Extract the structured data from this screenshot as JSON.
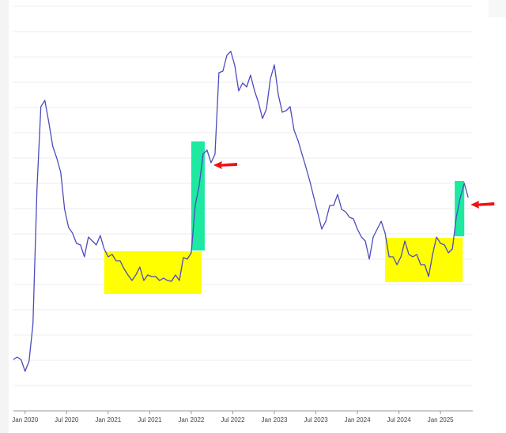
{
  "chart_data": {
    "type": "line",
    "x": [
      2019.857,
      2019.905,
      2019.952,
      2020,
      2020.048,
      2020.095,
      2020.143,
      2020.19,
      2020.238,
      2020.286,
      2020.333,
      2020.381,
      2020.429,
      2020.476,
      2020.524,
      2020.571,
      2020.619,
      2020.667,
      2020.714,
      2020.762,
      2020.81,
      2020.857,
      2020.905,
      2020.952,
      2021,
      2021.048,
      2021.095,
      2021.143,
      2021.19,
      2021.238,
      2021.286,
      2021.333,
      2021.381,
      2021.429,
      2021.476,
      2021.524,
      2021.571,
      2021.619,
      2021.667,
      2021.714,
      2021.762,
      2021.81,
      2021.857,
      2021.905,
      2021.952,
      2022,
      2022.048,
      2022.095,
      2022.143,
      2022.19,
      2022.238,
      2022.286,
      2022.333,
      2022.381,
      2022.429,
      2022.476,
      2022.524,
      2022.571,
      2022.619,
      2022.667,
      2022.714,
      2022.762,
      2022.81,
      2022.857,
      2022.905,
      2022.952,
      2023,
      2023.048,
      2023.095,
      2023.143,
      2023.19,
      2023.238,
      2023.286,
      2023.333,
      2023.381,
      2023.429,
      2023.476,
      2023.524,
      2023.571,
      2023.619,
      2023.667,
      2023.714,
      2023.762,
      2023.81,
      2023.857,
      2023.905,
      2023.952,
      2024,
      2024.048,
      2024.095,
      2024.143,
      2024.19,
      2024.238,
      2024.286,
      2024.333,
      2024.381,
      2024.429,
      2024.476,
      2024.524,
      2024.571,
      2024.619,
      2024.667,
      2024.714,
      2024.762,
      2024.81,
      2024.857,
      2024.905,
      2024.952,
      2025,
      2025.048,
      2025.095,
      2025.143,
      2025.19,
      2025.238,
      2025.286,
      2025.333
    ],
    "values": [
      65,
      68,
      65,
      50,
      63,
      110,
      280,
      385,
      393,
      365,
      335,
      320,
      302,
      255,
      232,
      225,
      212,
      210,
      195,
      220,
      215,
      210,
      222,
      205,
      195,
      198,
      190,
      190,
      180,
      172,
      165,
      172,
      182,
      165,
      172,
      170,
      170,
      165,
      168,
      165,
      164,
      172,
      165,
      194,
      192,
      200,
      260,
      285,
      325,
      330,
      314,
      325,
      428,
      430,
      450,
      455,
      437,
      405,
      415,
      410,
      425,
      405,
      390,
      370,
      382,
      420,
      438,
      400,
      378,
      380,
      385,
      355,
      342,
      325,
      308,
      290,
      270,
      250,
      230,
      240,
      260,
      260,
      274,
      255,
      252,
      245,
      243,
      230,
      220,
      215,
      192,
      220,
      230,
      240,
      225,
      195,
      195,
      185,
      195,
      215,
      198,
      195,
      198,
      185,
      185,
      170,
      198,
      220,
      212,
      210,
      200,
      205,
      245,
      270,
      288,
      270
    ],
    "color": "#4b4bbf",
    "xlim": [
      2019.86,
      2025.36
    ],
    "xticks": [
      {
        "value": 2020,
        "label": "Jan 2020"
      },
      {
        "value": 2020.5,
        "label": "Jul 2020"
      },
      {
        "value": 2021,
        "label": "Jan 2021"
      },
      {
        "value": 2021.5,
        "label": "Jul 2021"
      },
      {
        "value": 2022,
        "label": "Jan 2022"
      },
      {
        "value": 2022.5,
        "label": "Jul 2022"
      },
      {
        "value": 2023,
        "label": "Jan 2023"
      },
      {
        "value": 2023.5,
        "label": "Jul 2023"
      },
      {
        "value": 2024,
        "label": "Jan 2024"
      },
      {
        "value": 2024.5,
        "label": "Jul 2024"
      },
      {
        "value": 2025,
        "label": "Jan 2025"
      }
    ],
    "ylim": [
      0,
      512
    ],
    "yticks": [
      32,
      64,
      96,
      128,
      160,
      192,
      224,
      256,
      288,
      320,
      352,
      384,
      416,
      448,
      480,
      512
    ],
    "grid": true,
    "highlights": [
      {
        "x": [
          2020.952,
          2022.124
        ],
        "y": [
          148,
          202
        ],
        "color": "#ffff00"
      },
      {
        "x": [
          2022.0,
          2022.162
        ],
        "y": [
          203,
          341
        ],
        "color": "#1de9a0"
      },
      {
        "x": [
          2024.333,
          2025.267
        ],
        "y": [
          163,
          219
        ],
        "color": "#ffff00"
      },
      {
        "x": [
          2025.171,
          2025.286
        ],
        "y": [
          221,
          291
        ],
        "color": "#1de9a0"
      }
    ],
    "arrows": [
      {
        "x": 2022.267,
        "y": 311,
        "color": "#ee1111"
      },
      {
        "x": 2025.362,
        "y": 261,
        "color": "#ee1111"
      }
    ]
  }
}
